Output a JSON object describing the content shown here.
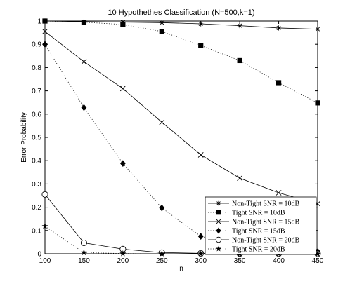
{
  "chart_data": {
    "type": "line",
    "title": "10 Hypothethes Classification (N=500,k=1)",
    "xlabel": "n",
    "ylabel": "Error Probability",
    "xlim": [
      100,
      450
    ],
    "ylim": [
      0,
      1
    ],
    "xticks": [
      "100",
      "150",
      "200",
      "250",
      "300",
      "350",
      "400",
      "450"
    ],
    "yticks": [
      "0",
      "0.1",
      "0.2",
      "0.3",
      "0.4",
      "0.5",
      "0.6",
      "0.7",
      "0.8",
      "0.9",
      "1"
    ],
    "grid": "off",
    "legend_position": "bottom-right",
    "x": [
      100,
      150,
      200,
      250,
      300,
      350,
      400,
      450
    ],
    "series": [
      {
        "name": "Non-Tight SNR = 10dB",
        "marker": "asterisk",
        "line": "solid",
        "values": [
          1.0,
          0.997,
          0.995,
          0.993,
          0.988,
          0.98,
          0.97,
          0.965
        ]
      },
      {
        "name": "Tight SNR = 10dB",
        "marker": "square",
        "line": "dotted",
        "values": [
          1.0,
          0.995,
          0.985,
          0.955,
          0.895,
          0.83,
          0.735,
          0.648
        ]
      },
      {
        "name": "Non-Tight SNR = 15dB",
        "marker": "x",
        "line": "solid",
        "values": [
          0.955,
          0.825,
          0.71,
          0.565,
          0.425,
          0.325,
          0.262,
          0.215
        ]
      },
      {
        "name": "Tight SNR = 15dB",
        "marker": "diamond",
        "line": "dotted",
        "values": [
          0.9,
          0.628,
          0.388,
          0.197,
          0.075,
          0.035,
          0.015,
          0.01
        ]
      },
      {
        "name": "Non-Tight SNR = 20dB",
        "marker": "circle",
        "line": "solid",
        "values": [
          0.255,
          0.047,
          0.02,
          0.005,
          0.002,
          0.001,
          0.001,
          0.0
        ]
      },
      {
        "name": "Tight SNR = 20dB",
        "marker": "star",
        "line": "dotted",
        "values": [
          0.118,
          0.005,
          0.001,
          0.0,
          0.0,
          0.0,
          0.0,
          0.0
        ]
      }
    ]
  }
}
